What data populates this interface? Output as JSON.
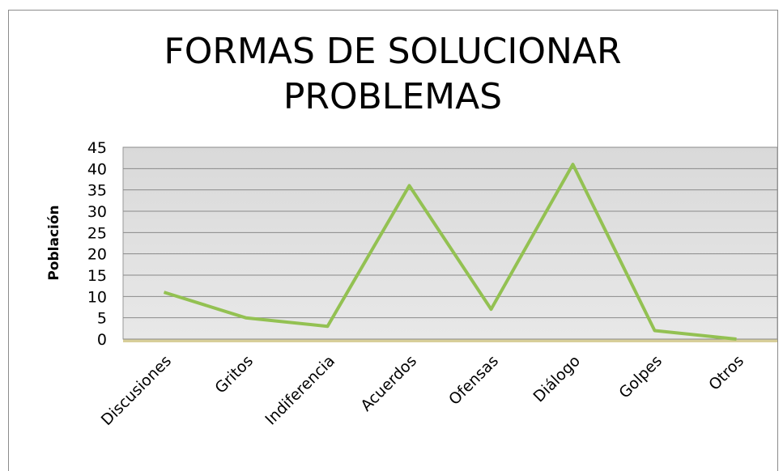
{
  "chart_data": {
    "type": "line",
    "title": "FORMAS DE SOLUCIONAR PROBLEMAS",
    "y_label": "Población",
    "categories": [
      "Discusiones",
      "Gritos",
      "Indiferencia",
      "Acuerdos",
      "Ofensas",
      "Diálogo",
      "Golpes",
      "Otros"
    ],
    "values": [
      11,
      5,
      3,
      36,
      7,
      41,
      2,
      0
    ],
    "color": "#93c152",
    "ylim": [
      0,
      45
    ],
    "yticks": [
      0,
      5,
      10,
      15,
      20,
      25,
      30,
      35,
      40,
      45
    ],
    "grid": true
  }
}
